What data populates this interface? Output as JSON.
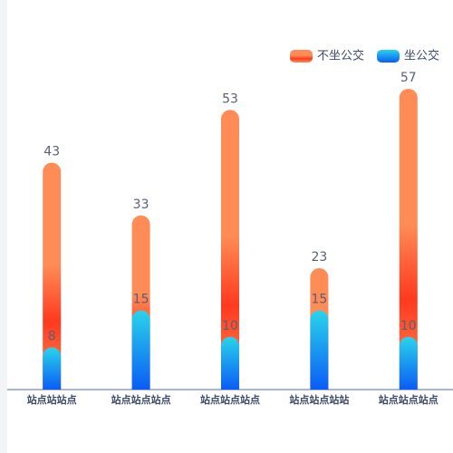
{
  "chart_data": {
    "type": "bar",
    "overlap": true,
    "categories": [
      "站点站站点",
      "站点站点站点",
      "站点站点站点",
      "站点站点站站",
      "站点站点站点"
    ],
    "series": [
      {
        "name": "不坐公交",
        "color": [
          "#ff8c57",
          "#ff3a1e"
        ],
        "values": [
          43,
          33,
          53,
          23,
          57
        ]
      },
      {
        "name": "坐公交",
        "color": [
          "#2ad4ea",
          "#0a5cf5"
        ],
        "values": [
          8,
          15,
          10,
          15,
          10
        ]
      }
    ],
    "legend": "top-right"
  }
}
